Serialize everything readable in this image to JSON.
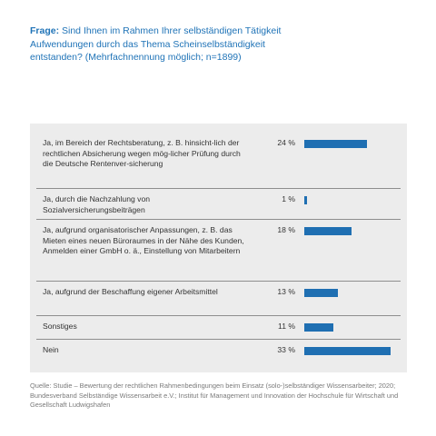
{
  "question": {
    "label": "Frage:",
    "text": " Sind Ihnen im Rahmen Ihrer selbständigen Tätigkeit Aufwendungen durch das Thema Scheinselbständigkeit entstanden? (Mehrfachnennung möglich; n=1899)"
  },
  "chart_data": {
    "type": "bar",
    "orientation": "horizontal",
    "unit": "%",
    "bar_color": "#1f6fb2",
    "categories": [
      "Ja, im Bereich der Rechtsberatung, z. B. hinsicht-lich der rechtlichen Absicherung wegen mög-licher Prüfung durch die Deutsche Rentenver-sicherung",
      "Ja, durch die Nachzahlung von Sozialversicherungsbeiträgen",
      "Ja, aufgrund organisatorischer Anpassungen, z. B. das Mieten eines neuen Büroraumes in der Nähe des Kunden, Anmelden einer GmbH o. ä., Einstellung von Mitarbeitern",
      "Ja, aufgrund der Beschaffung eigener Arbeitsmittel",
      "Sonstiges",
      "Nein"
    ],
    "values": [
      24,
      1,
      18,
      13,
      11,
      33
    ],
    "value_labels": [
      "24 %",
      "1 %",
      "18 %",
      "13 %",
      "11 %",
      "33 %"
    ]
  },
  "source": "Quelle: Studie – Bewertung der rechtlichen Rahmenbedingungen beim Einsatz (solo-)selbständiger Wissensarbeiter; 2020; Bundesverband Selbständige Wissensarbeit e.V.; Institut für Management und Innovation der Hochschule für Wirtschaft und Gesellschaft Ludwigshafen"
}
